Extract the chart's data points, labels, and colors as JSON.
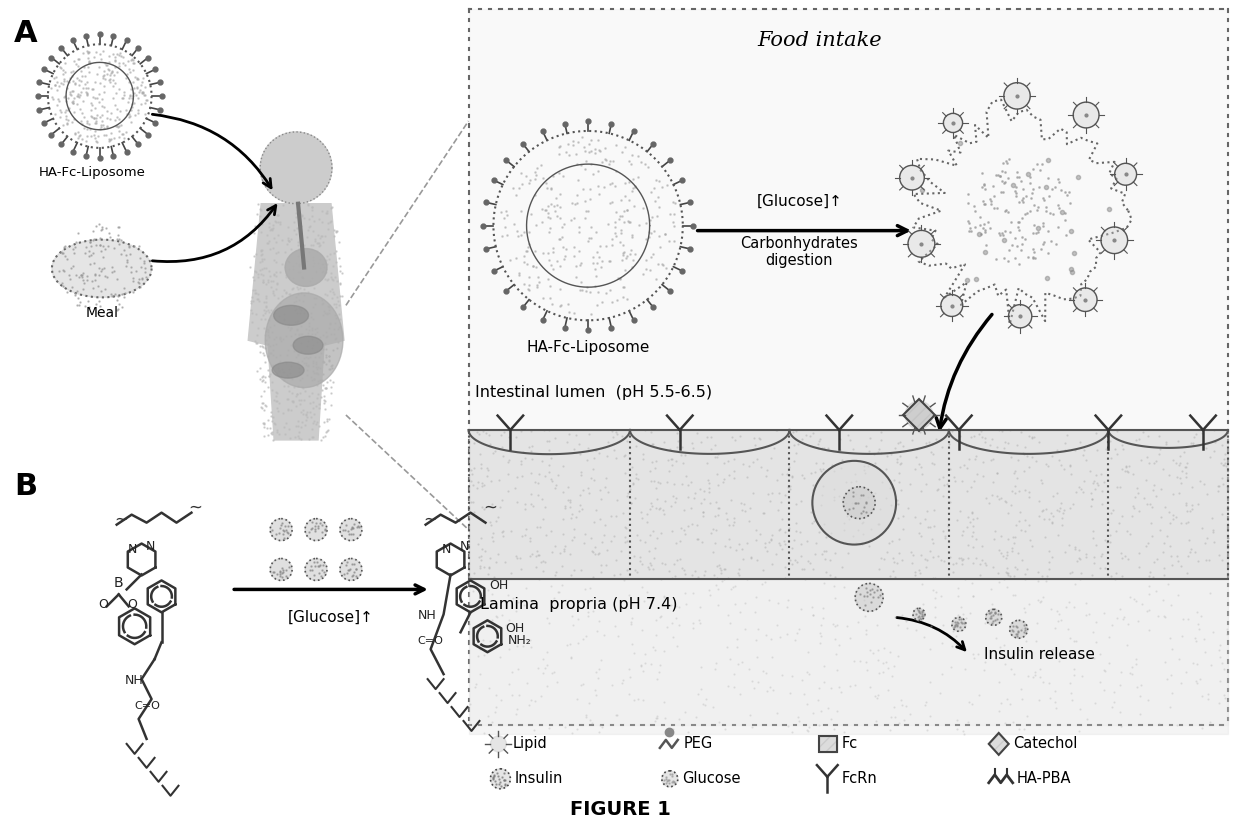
{
  "title": "FIGURE 1",
  "background_color": "#ffffff",
  "panel_A_label": "A",
  "panel_B_label": "B",
  "food_intake_text": "Food intake",
  "glucose_text": "[Glucose]↑",
  "carb_text": "Carbonhydrates\ndigestion",
  "glucose_b_text": "[Glucose]↑",
  "intestinal_lumen_text": "Intestinal lumen  (pH 5.5-6.5)",
  "lamina_propria_text": "Lamina  propria (pH 7.4)",
  "insulin_release_text": "Insulin release",
  "ha_fc_liposome_text": "HA-Fc-Liposome",
  "meal_text": "Meal",
  "ha_fc_liposome2_text": "HA-Fc-Liposome",
  "legend_row1": [
    "Lipid",
    "PEG",
    "Fc",
    "Catechol"
  ],
  "legend_row2": [
    "Insulin",
    "Glucose",
    "FcRn",
    "HA-PBA"
  ],
  "dotted_fill_color": "#c8c8c8",
  "dark_gray": "#555555",
  "light_gray": "#aaaaaa",
  "text_color": "#000000",
  "box_border": "#888888"
}
